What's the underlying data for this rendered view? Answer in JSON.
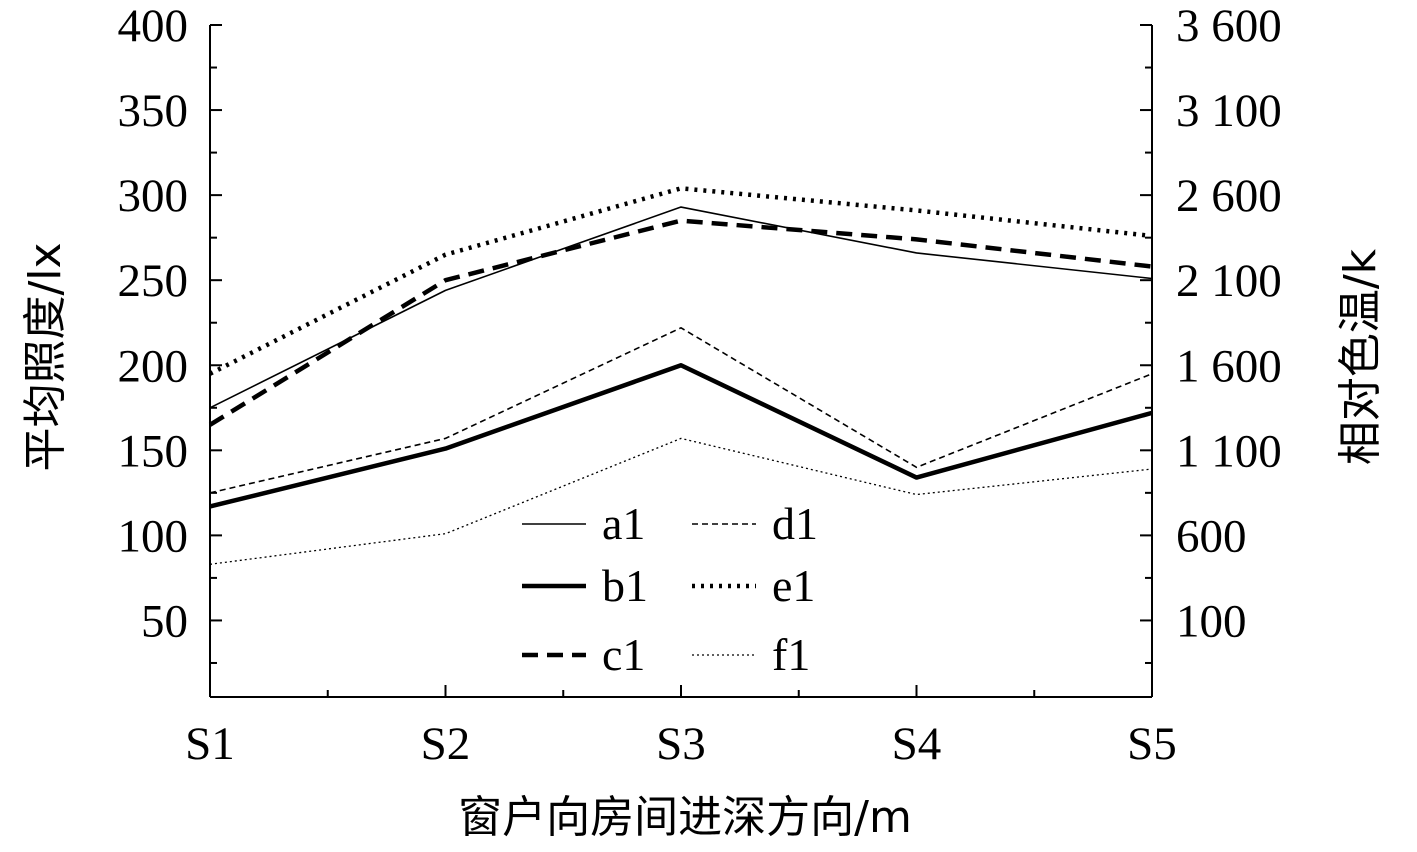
{
  "chart_data": {
    "type": "line",
    "categories": [
      "S1",
      "S2",
      "S3",
      "S4",
      "S5"
    ],
    "xlabel": "窗户向房间进深方向/m",
    "ylabel": "平均照度/lx",
    "ylabel_right": "相对色温/k",
    "ylim": [
      5,
      400
    ],
    "y_ticks": [
      50,
      100,
      150,
      200,
      250,
      300,
      350,
      400
    ],
    "y_ticks_right": [
      "100",
      "600",
      "1 100",
      "1 600",
      "2 100",
      "2 600",
      "3 100",
      "3 600"
    ],
    "grid": false,
    "legend_position": "bottom-center",
    "series": [
      {
        "name": "a1",
        "values": [
          175,
          244,
          293,
          266,
          251
        ],
        "style": "thin-solid"
      },
      {
        "name": "b1",
        "values": [
          117,
          151,
          200,
          134,
          172
        ],
        "style": "thick-solid"
      },
      {
        "name": "c1",
        "values": [
          165,
          250,
          285,
          274,
          258
        ],
        "style": "thick-dashed"
      },
      {
        "name": "d1",
        "values": [
          125,
          157,
          222,
          140,
          195
        ],
        "style": "thin-dashed"
      },
      {
        "name": "e1",
        "values": [
          195,
          265,
          304,
          291,
          276
        ],
        "style": "thick-dotted"
      },
      {
        "name": "f1",
        "values": [
          83,
          101,
          157,
          124,
          139
        ],
        "style": "thin-dotted"
      }
    ]
  }
}
